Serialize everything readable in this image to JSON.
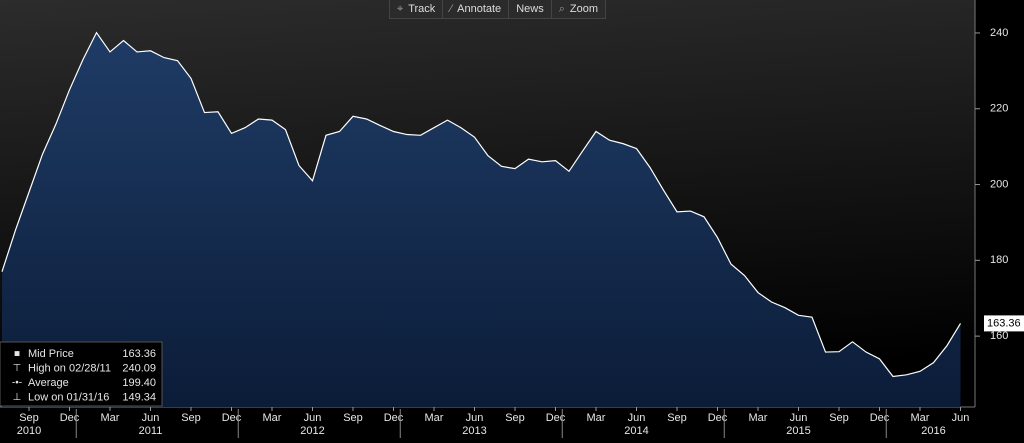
{
  "chart_data": {
    "type": "area",
    "x": [
      "2010-07",
      "2010-08",
      "2010-09",
      "2010-10",
      "2010-11",
      "2010-12",
      "2011-01",
      "2011-02",
      "2011-03",
      "2011-04",
      "2011-05",
      "2011-06",
      "2011-07",
      "2011-08",
      "2011-09",
      "2011-10",
      "2011-11",
      "2011-12",
      "2012-01",
      "2012-02",
      "2012-03",
      "2012-04",
      "2012-05",
      "2012-06",
      "2012-07",
      "2012-08",
      "2012-09",
      "2012-10",
      "2012-11",
      "2012-12",
      "2013-01",
      "2013-02",
      "2013-03",
      "2013-04",
      "2013-05",
      "2013-06",
      "2013-07",
      "2013-08",
      "2013-09",
      "2013-10",
      "2013-11",
      "2013-12",
      "2014-01",
      "2014-02",
      "2014-03",
      "2014-04",
      "2014-05",
      "2014-06",
      "2014-07",
      "2014-08",
      "2014-09",
      "2014-10",
      "2014-11",
      "2014-12",
      "2015-01",
      "2015-02",
      "2015-03",
      "2015-04",
      "2015-05",
      "2015-06",
      "2015-07",
      "2015-08",
      "2015-09",
      "2015-10",
      "2015-11",
      "2015-12",
      "2016-01",
      "2016-02",
      "2016-03",
      "2016-04",
      "2016-05",
      "2016-06"
    ],
    "series": [
      {
        "name": "Mid Price",
        "color": "#ffffff",
        "values": [
          177,
          188,
          198,
          208,
          216,
          225,
          233,
          240.09,
          235,
          238,
          235,
          235.3,
          233.5,
          232.7,
          228,
          219,
          219.2,
          213.5,
          215,
          217.3,
          217,
          214.5,
          205,
          201,
          213,
          214,
          218,
          217.3,
          215.6,
          214,
          213.2,
          213,
          215,
          217,
          215,
          212.5,
          207.6,
          204.8,
          204.2,
          206.7,
          206,
          206.3,
          203.5,
          208.8,
          214,
          211.7,
          210.8,
          209.5,
          204.5,
          198.5,
          192.8,
          193,
          191.5,
          186,
          179,
          176,
          171.5,
          169,
          167.5,
          165.5,
          165,
          155.8,
          155.9,
          158.5,
          155.8,
          154,
          149.34,
          149.8,
          150.7,
          153,
          157.5,
          163.36
        ]
      }
    ],
    "ylim": [
      141.3,
      248.7
    ],
    "yticks": [
      160,
      180,
      200,
      220,
      240
    ],
    "xticks": [
      {
        "value": "2010-09",
        "label": "Sep"
      },
      {
        "value": "2010-12",
        "label": "Dec"
      },
      {
        "value": "2011-03",
        "label": "Mar"
      },
      {
        "value": "2011-06",
        "label": "Jun"
      },
      {
        "value": "2011-09",
        "label": "Sep"
      },
      {
        "value": "2011-12",
        "label": "Dec"
      },
      {
        "value": "2012-03",
        "label": "Mar"
      },
      {
        "value": "2012-06",
        "label": "Jun"
      },
      {
        "value": "2012-09",
        "label": "Sep"
      },
      {
        "value": "2012-12",
        "label": "Dec"
      },
      {
        "value": "2013-03",
        "label": "Mar"
      },
      {
        "value": "2013-06",
        "label": "Jun"
      },
      {
        "value": "2013-09",
        "label": "Sep"
      },
      {
        "value": "2013-12",
        "label": "Dec"
      },
      {
        "value": "2014-03",
        "label": "Mar"
      },
      {
        "value": "2014-06",
        "label": "Jun"
      },
      {
        "value": "2014-09",
        "label": "Sep"
      },
      {
        "value": "2014-12",
        "label": "Dec"
      },
      {
        "value": "2015-03",
        "label": "Mar"
      },
      {
        "value": "2015-06",
        "label": "Jun"
      },
      {
        "value": "2015-09",
        "label": "Sep"
      },
      {
        "value": "2015-12",
        "label": "Dec"
      },
      {
        "value": "2016-03",
        "label": "Mar"
      },
      {
        "value": "2016-06",
        "label": "Jun"
      }
    ],
    "year_labels": [
      {
        "value": "2010-09",
        "label": "2010"
      },
      {
        "value": "2011-06",
        "label": "2011"
      },
      {
        "value": "2012-06",
        "label": "2012"
      },
      {
        "value": "2013-06",
        "label": "2013"
      },
      {
        "value": "2014-06",
        "label": "2014"
      },
      {
        "value": "2015-06",
        "label": "2015"
      },
      {
        "value": "2016-04",
        "label": "2016"
      }
    ],
    "last_price": 163.36,
    "legend": [
      {
        "label": "Mid Price",
        "value": 163.36
      },
      {
        "label": "High on 02/28/11",
        "value": 240.09
      },
      {
        "label": "Average",
        "value": 199.4,
        "value_label": "199.40"
      },
      {
        "label": "Low on 01/31/16",
        "value": 149.34
      }
    ]
  },
  "toolbar": [
    "Track",
    "Annotate",
    "News",
    "Zoom"
  ]
}
